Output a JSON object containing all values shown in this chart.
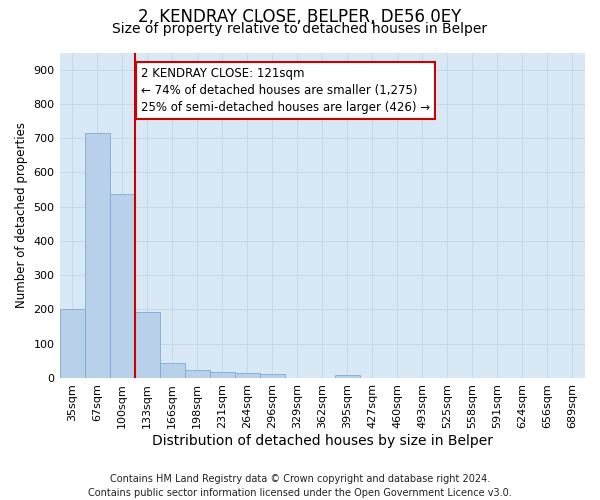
{
  "title1": "2, KENDRAY CLOSE, BELPER, DE56 0EY",
  "title2": "Size of property relative to detached houses in Belper",
  "xlabel": "Distribution of detached houses by size in Belper",
  "ylabel": "Number of detached properties",
  "categories": [
    "35sqm",
    "67sqm",
    "100sqm",
    "133sqm",
    "166sqm",
    "198sqm",
    "231sqm",
    "264sqm",
    "296sqm",
    "329sqm",
    "362sqm",
    "395sqm",
    "427sqm",
    "460sqm",
    "493sqm",
    "525sqm",
    "558sqm",
    "591sqm",
    "624sqm",
    "656sqm",
    "689sqm"
  ],
  "values": [
    200,
    715,
    537,
    193,
    45,
    22,
    17,
    15,
    12,
    0,
    0,
    10,
    0,
    0,
    0,
    0,
    0,
    0,
    0,
    0,
    0
  ],
  "bar_color": "#b8d0ea",
  "bar_edge_color": "#7aadd4",
  "vline_color": "#cc0000",
  "vline_pos": 2.5,
  "annotation_text": "2 KENDRAY CLOSE: 121sqm\n← 74% of detached houses are smaller (1,275)\n25% of semi-detached houses are larger (426) →",
  "annotation_box_color": "#ffffff",
  "annotation_box_edge": "#cc0000",
  "ylim": [
    0,
    950
  ],
  "yticks": [
    0,
    100,
    200,
    300,
    400,
    500,
    600,
    700,
    800,
    900
  ],
  "grid_color": "#c5d8ec",
  "bg_color": "#d8e8f5",
  "footer": "Contains HM Land Registry data © Crown copyright and database right 2024.\nContains public sector information licensed under the Open Government Licence v3.0.",
  "title1_fontsize": 12,
  "title2_fontsize": 10,
  "xlabel_fontsize": 10,
  "ylabel_fontsize": 8.5,
  "tick_fontsize": 8,
  "footer_fontsize": 7,
  "annot_fontsize": 8.5
}
